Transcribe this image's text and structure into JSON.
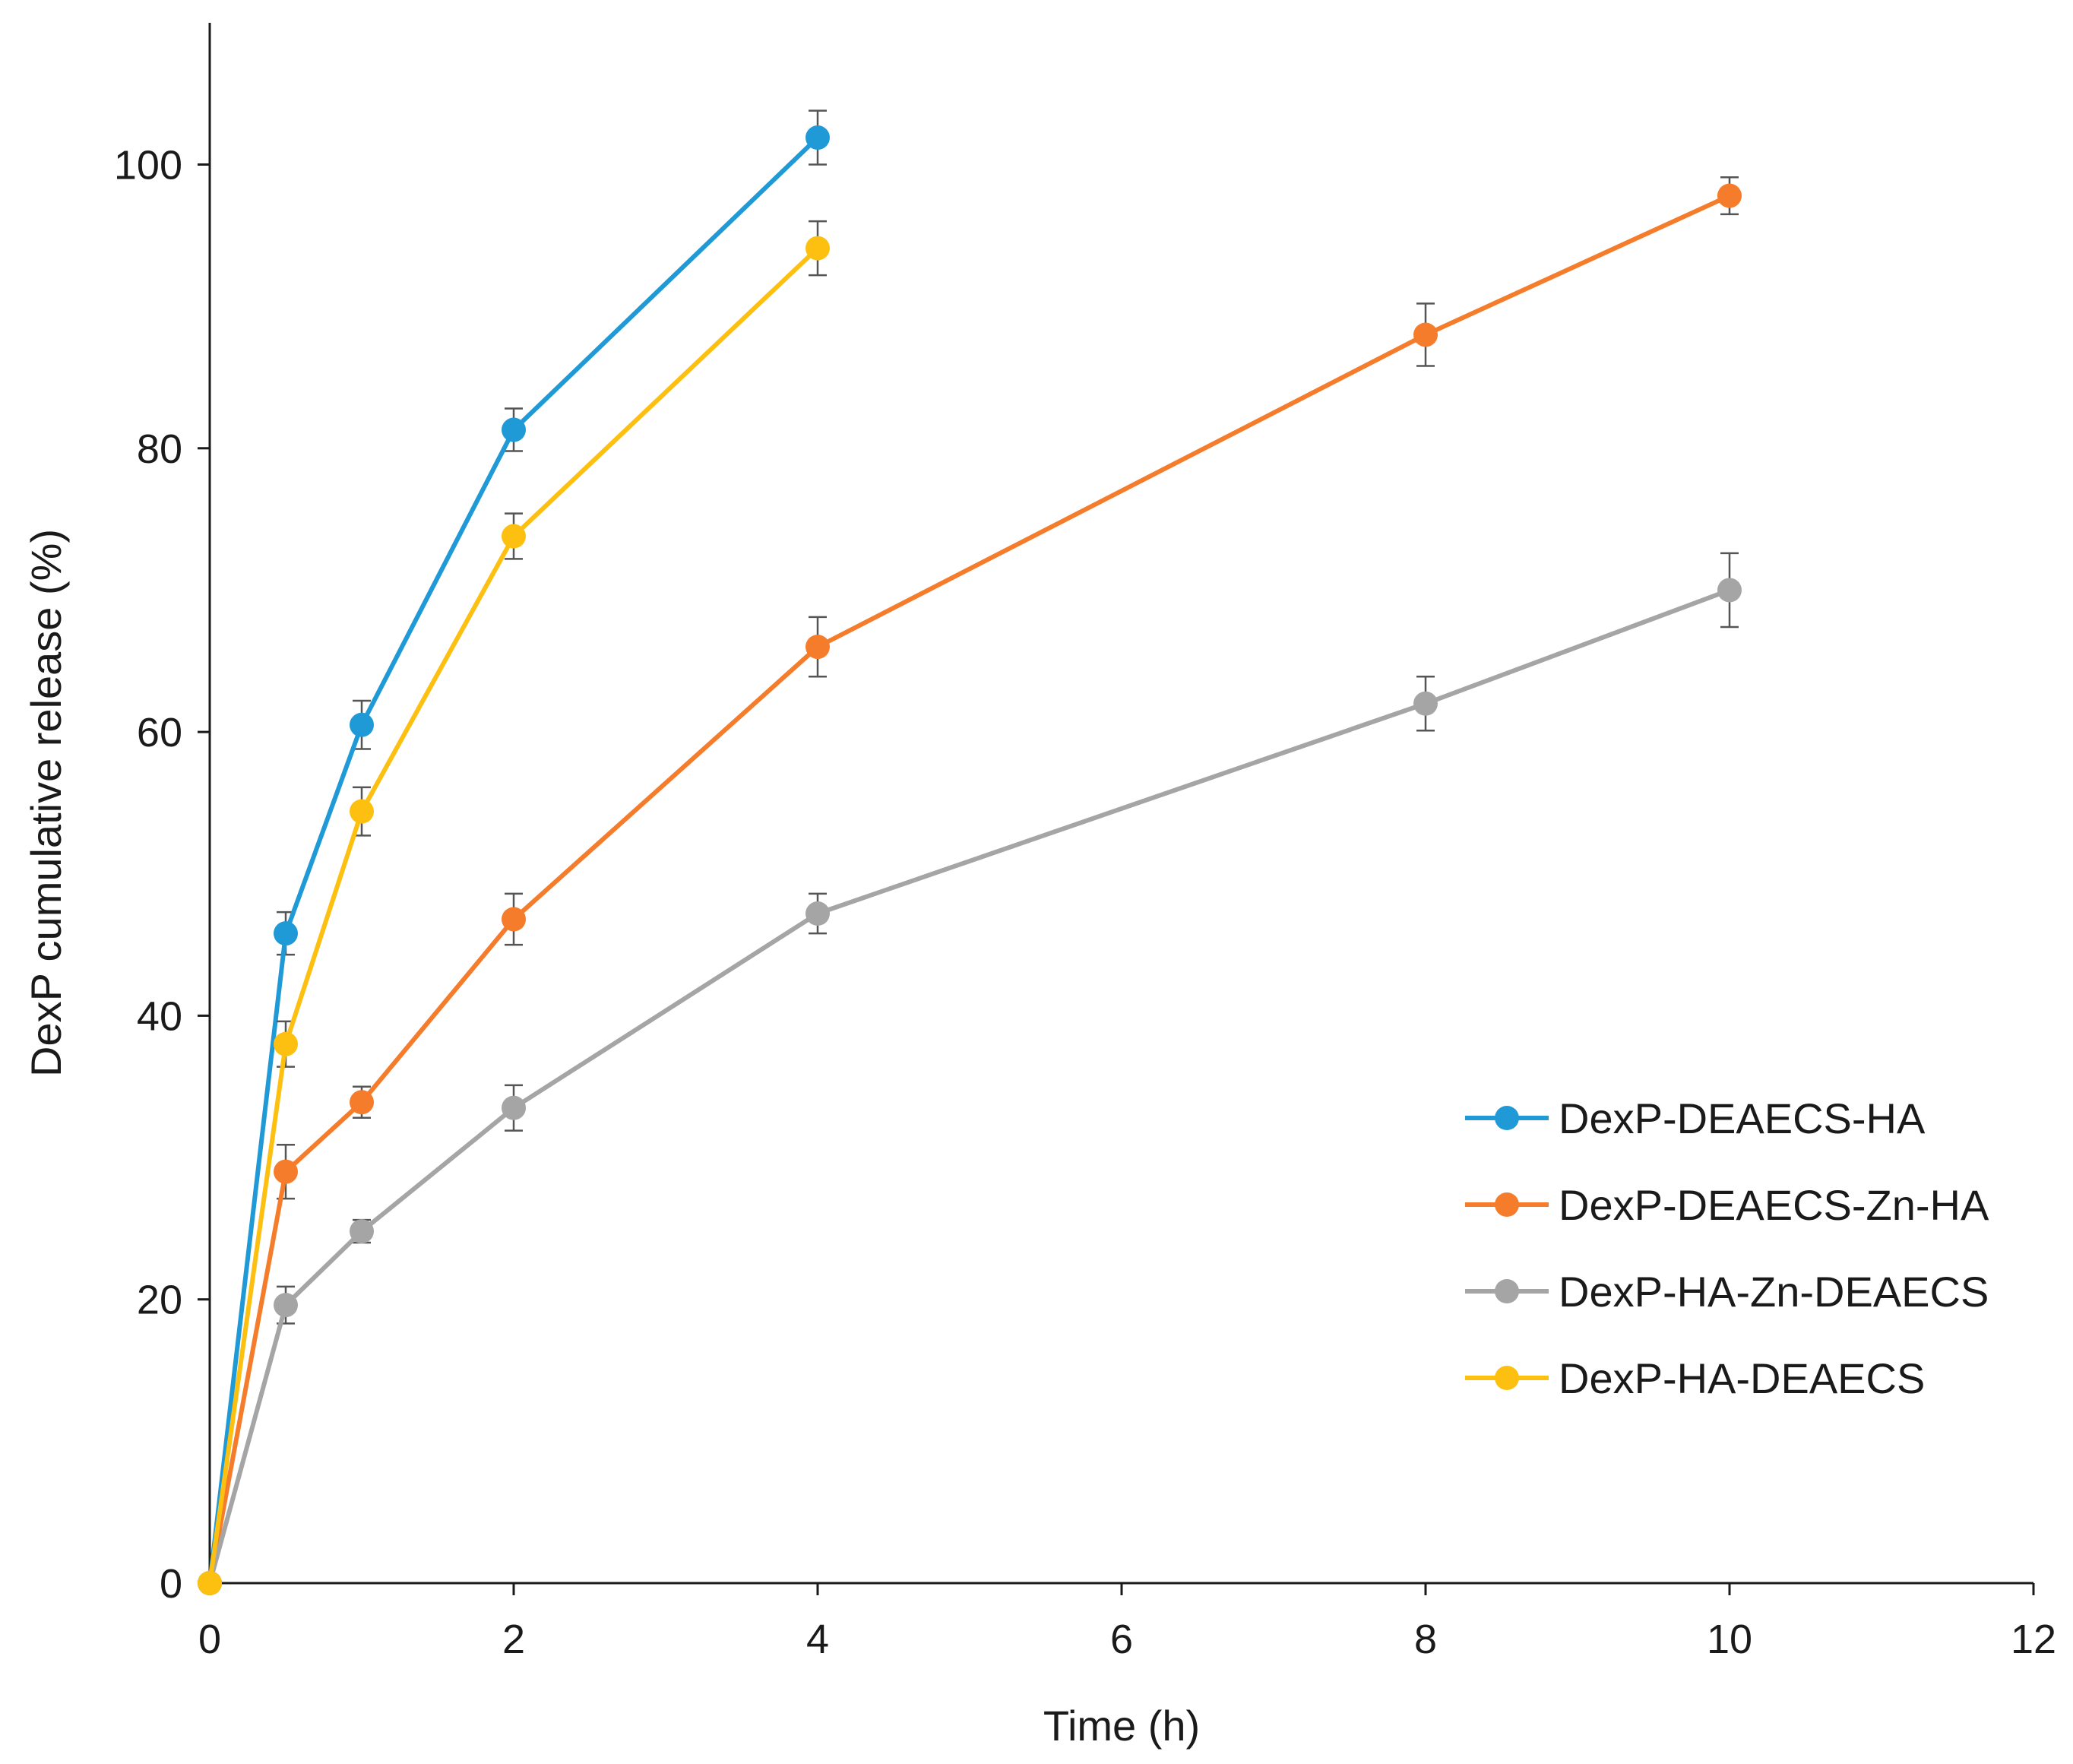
{
  "chart_data": {
    "type": "line",
    "title": "",
    "xlabel": "Time (h)",
    "ylabel": "DexP cumulative release (%)",
    "xlim": [
      0,
      12
    ],
    "ylim": [
      0,
      110
    ],
    "x_ticks": [
      0,
      2,
      4,
      6,
      8,
      10,
      12
    ],
    "y_ticks": [
      0,
      20,
      40,
      60,
      80,
      100
    ],
    "x_tick_labels": [
      "0",
      "2",
      "4",
      "6",
      "8",
      "10",
      "12"
    ],
    "y_tick_labels": [
      "0",
      "20",
      "40",
      "60",
      "80",
      "100"
    ],
    "grid": false,
    "legend_position": "right",
    "series": [
      {
        "name": "DexP-DEAECS-HA",
        "color": "#1f9ad6",
        "x": [
          0,
          0.5,
          1,
          2,
          4
        ],
        "y": [
          0,
          45.8,
          60.5,
          81.3,
          101.9
        ],
        "error": [
          0,
          1.5,
          1.7,
          1.5,
          1.9
        ]
      },
      {
        "name": "DexP-DEAECS-Zn-HA",
        "color": "#f47c2a",
        "x": [
          0,
          0.5,
          1,
          2,
          4,
          8,
          10
        ],
        "y": [
          0,
          29.0,
          33.9,
          46.8,
          66.0,
          88.0,
          97.8
        ],
        "error": [
          0,
          1.9,
          1.1,
          1.8,
          2.1,
          2.2,
          1.3
        ]
      },
      {
        "name": "DexP-HA-Zn-DEAECS",
        "color": "#a5a5a5",
        "x": [
          0,
          0.5,
          1,
          2,
          4,
          8,
          10
        ],
        "y": [
          0,
          19.6,
          24.8,
          33.5,
          47.2,
          62.0,
          70.0
        ],
        "error": [
          0,
          1.3,
          0.8,
          1.6,
          1.4,
          1.9,
          2.6
        ]
      },
      {
        "name": "DexP-HA-DEAECS",
        "color": "#fdc010",
        "x": [
          0,
          0.5,
          1,
          2,
          4
        ],
        "y": [
          0,
          38.0,
          54.4,
          73.8,
          94.1
        ],
        "error": [
          0,
          1.6,
          1.7,
          1.6,
          1.9
        ]
      }
    ]
  }
}
